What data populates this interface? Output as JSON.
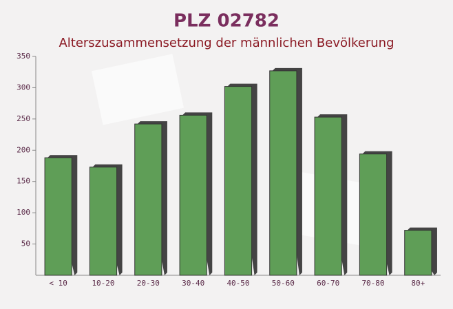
{
  "chart_data": {
    "type": "bar",
    "title": "PLZ 02782",
    "subtitle": "Alterszusammensetzung der männlichen Bevölkerung",
    "categories": [
      "< 10",
      "10-20",
      "20-30",
      "30-40",
      "40-50",
      "50-60",
      "60-70",
      "70-80",
      "80+"
    ],
    "values": [
      188,
      173,
      242,
      256,
      302,
      327,
      253,
      194,
      72
    ],
    "color": "#5f9e57",
    "ylim": [
      0,
      350
    ],
    "yticks": [
      50,
      100,
      150,
      200,
      250,
      300,
      350
    ]
  }
}
